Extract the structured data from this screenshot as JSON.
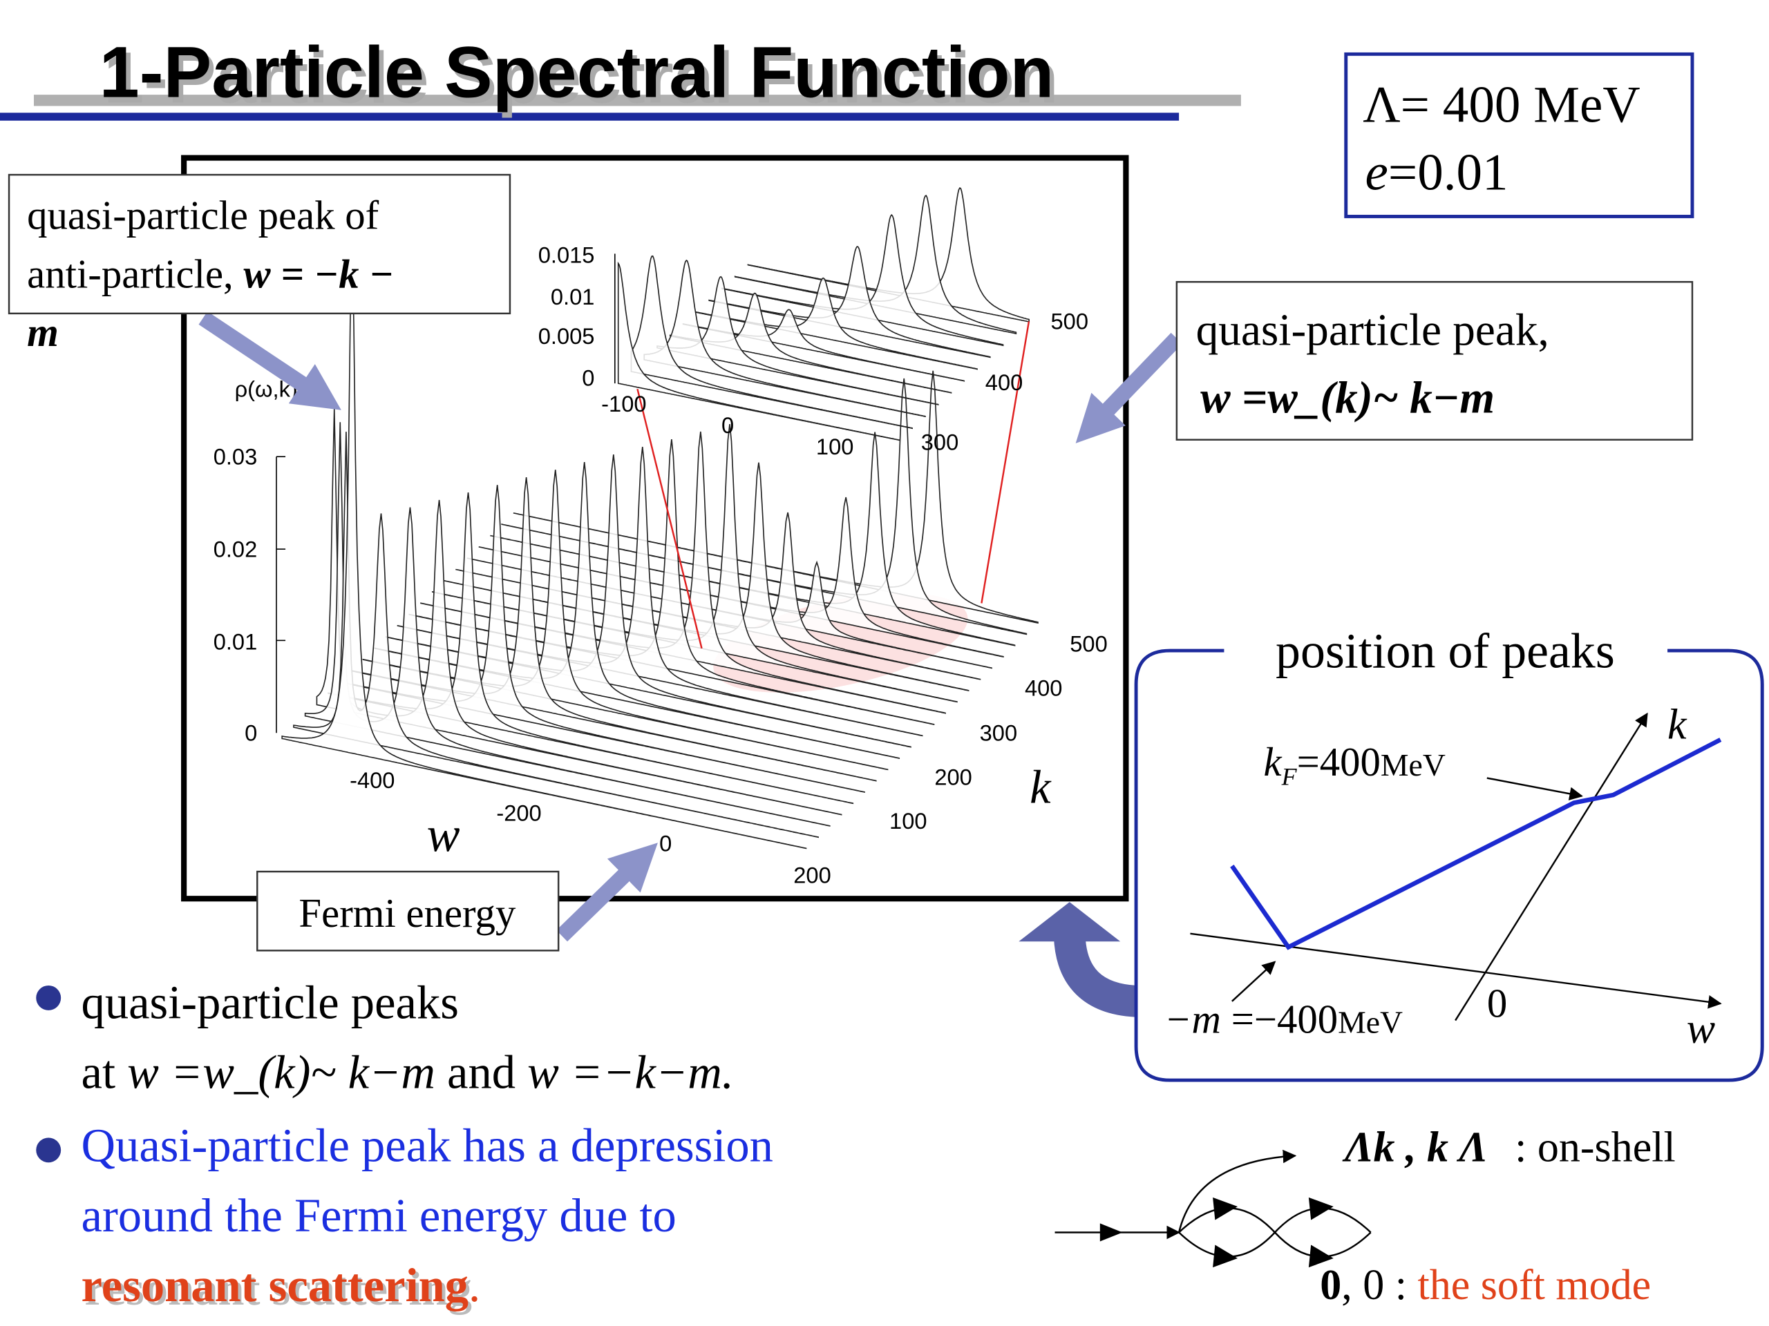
{
  "title": "1-Particle Spectral Function",
  "params": {
    "cutoff": "Λ= 400 MeV",
    "epsilon": {
      "symbol": "e",
      "value": "=0.01"
    }
  },
  "figure": {
    "y_label": "ρ(ω,k)",
    "y_ticks": [
      "0",
      "0.01",
      "0.02",
      "0.03"
    ],
    "w_label": "w",
    "w_ticks": [
      "-400",
      "-200",
      "0",
      "200"
    ],
    "k_label": "k",
    "k_ticks": [
      "100",
      "200",
      "300",
      "400",
      "500"
    ],
    "inset": {
      "y_ticks": [
        "0",
        "0.005",
        "0.01",
        "0.015"
      ],
      "w_ticks": [
        "-100",
        "0",
        "100"
      ],
      "k_ticks": [
        "300",
        "400",
        "500"
      ]
    }
  },
  "callouts": {
    "anti_particle": {
      "line1": "quasi-particle peak of",
      "line2": "anti-particle, ",
      "formula": "w = −k −",
      "line3": "m"
    },
    "quasi_particle": {
      "line1": "quasi-particle peak,",
      "formula": "w =w_(k)~ k−m"
    },
    "fermi": "Fermi energy"
  },
  "peaks_panel": {
    "title": "position of peaks",
    "k_axis": "k",
    "w_axis": "w",
    "origin": "0",
    "kf": {
      "symbol": "k",
      "sub": "F",
      "value": "=400",
      "unit": "MeV"
    },
    "mass": {
      "symbol": "−m",
      "value": " =−400",
      "unit": "MeV"
    }
  },
  "bullets": [
    {
      "line1": "quasi-particle peaks",
      "line2": [
        "at ",
        "w =w_(k)~ k−m",
        "  and ",
        "w =−k−m."
      ]
    },
    {
      "lines": [
        "Quasi-particle peak has a depression",
        "around the Fermi energy due to"
      ],
      "highlight": "resonant scattering",
      "end": "."
    }
  ],
  "diagram": {
    "onshell": {
      "condition": "Λk , k Λ",
      "label": ": on-shell"
    },
    "soft": {
      "momenta": "0",
      "rest": ", 0 : ",
      "label": "the soft mode"
    }
  }
}
